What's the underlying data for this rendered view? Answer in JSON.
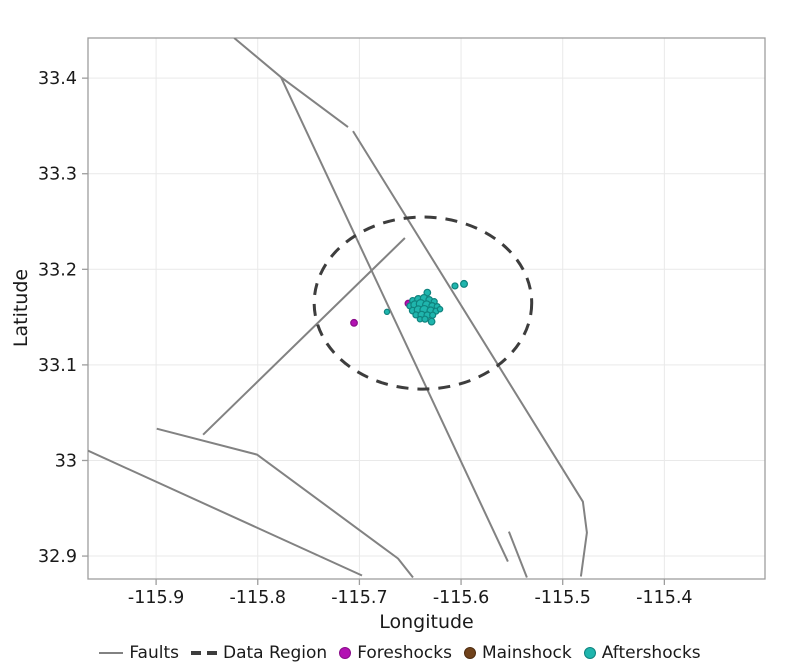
{
  "figure": {
    "background": "#ffffff",
    "text_color": "#1a1a1a"
  },
  "styles": {
    "grid_color": "#e9e9e9",
    "border_color": "#9d9d9d",
    "tick_color": "#9d9d9d",
    "fault_color": "#828282",
    "data_region_color": "#3d3d3d",
    "foreshock_fill": "#b312b3",
    "foreshock_stroke": "#8a0d8a",
    "mainshock_fill": "#70421b",
    "mainshock_stroke": "#4f2d11",
    "aftershock_fill": "#1fb5ad",
    "aftershock_stroke": "#0f837e"
  },
  "chart_data": {
    "type": "scatter",
    "title": "",
    "xlabel": "Longitude",
    "ylabel": "Latitude",
    "xlim": [
      -115.967,
      -115.301
    ],
    "ylim": [
      32.876,
      33.442
    ],
    "grid": true,
    "legend_position": "bottom",
    "x_ticks": [
      {
        "v": -115.9,
        "label": "-115.9"
      },
      {
        "v": -115.8,
        "label": "-115.8"
      },
      {
        "v": -115.7,
        "label": "-115.7"
      },
      {
        "v": -115.6,
        "label": "-115.6"
      },
      {
        "v": -115.5,
        "label": "-115.5"
      },
      {
        "v": -115.4,
        "label": "-115.4"
      }
    ],
    "y_ticks": [
      {
        "v": 33.4,
        "label": "33.4"
      },
      {
        "v": 33.3,
        "label": "33.3"
      },
      {
        "v": 33.2,
        "label": "33.2"
      },
      {
        "v": 33.1,
        "label": "33.1"
      },
      {
        "v": 33.0,
        "label": "33"
      },
      {
        "v": 32.9,
        "label": "32.9"
      }
    ],
    "series": [
      {
        "name": "Faults",
        "type": "line",
        "polylines": [
          [
            [
              -115.8232,
              33.442
            ],
            [
              -115.7771,
              33.401
            ],
            [
              -115.7112,
              33.3488
            ]
          ],
          [
            [
              -115.7063,
              33.3446
            ],
            [
              -115.4801,
              32.9569
            ],
            [
              -115.4762,
              32.9245
            ],
            [
              -115.4821,
              32.8786
            ]
          ],
          [
            [
              -115.7771,
              33.401
            ],
            [
              -115.5539,
              32.8942
            ]
          ],
          [
            [
              -115.8538,
              33.027
            ],
            [
              -115.6552,
              33.2328
            ]
          ],
          [
            [
              -115.8994,
              33.0332
            ],
            [
              -115.8007,
              33.0061
            ],
            [
              -115.662,
              32.8974
            ],
            [
              -115.6473,
              32.8776
            ]
          ],
          [
            [
              -115.967,
              33.0102
            ],
            [
              -115.6975,
              32.8797
            ]
          ],
          [
            [
              -115.5529,
              32.9256
            ],
            [
              -115.5352,
              32.8776
            ]
          ]
        ]
      },
      {
        "name": "Data Region",
        "type": "ellipse",
        "line_style": "dashed",
        "center_lon": -115.6375,
        "center_lat": 33.1647,
        "rx_deg": 0.107,
        "ry_deg": 0.09
      },
      {
        "name": "Foreshocks",
        "type": "scatter",
        "points": [
          {
            "lon": -115.7053,
            "lat": 33.144,
            "r": 3.3
          },
          {
            "lon": -115.6519,
            "lat": 33.1643,
            "r": 3.2
          }
        ]
      },
      {
        "name": "Mainshock",
        "type": "scatter",
        "points": [
          {
            "lon": -115.6395,
            "lat": 33.1607,
            "r": 5.0
          }
        ]
      },
      {
        "name": "Aftershocks",
        "type": "scatter",
        "points": [
          {
            "lon": -115.6332,
            "lat": 33.1756,
            "r": 3.3
          },
          {
            "lon": -115.6476,
            "lat": 33.1673,
            "r": 3.0
          },
          {
            "lon": -115.6421,
            "lat": 33.1687,
            "r": 3.6
          },
          {
            "lon": -115.6365,
            "lat": 33.1698,
            "r": 3.6
          },
          {
            "lon": -115.6313,
            "lat": 33.168,
            "r": 3.3
          },
          {
            "lon": -115.6264,
            "lat": 33.1662,
            "r": 3.0
          },
          {
            "lon": -115.6503,
            "lat": 33.1617,
            "r": 3.0
          },
          {
            "lon": -115.6454,
            "lat": 33.1628,
            "r": 4.0
          },
          {
            "lon": -115.6398,
            "lat": 33.1638,
            "r": 4.3
          },
          {
            "lon": -115.6339,
            "lat": 33.1628,
            "r": 4.0
          },
          {
            "lon": -115.6284,
            "lat": 33.1617,
            "r": 3.3
          },
          {
            "lon": -115.6235,
            "lat": 33.161,
            "r": 3.0
          },
          {
            "lon": -115.6476,
            "lat": 33.1568,
            "r": 3.3
          },
          {
            "lon": -115.6421,
            "lat": 33.1576,
            "r": 4.0
          },
          {
            "lon": -115.6362,
            "lat": 33.1576,
            "r": 4.3
          },
          {
            "lon": -115.6299,
            "lat": 33.1568,
            "r": 3.6
          },
          {
            "lon": -115.6247,
            "lat": 33.1562,
            "r": 3.0
          },
          {
            "lon": -115.6207,
            "lat": 33.1583,
            "r": 2.7
          },
          {
            "lon": -115.6444,
            "lat": 33.1523,
            "r": 3.0
          },
          {
            "lon": -115.6388,
            "lat": 33.1523,
            "r": 3.6
          },
          {
            "lon": -115.6332,
            "lat": 33.152,
            "r": 3.3
          },
          {
            "lon": -115.6279,
            "lat": 33.152,
            "r": 3.0
          },
          {
            "lon": -115.6404,
            "lat": 33.1478,
            "r": 2.7
          },
          {
            "lon": -115.6355,
            "lat": 33.1478,
            "r": 3.0
          },
          {
            "lon": -115.629,
            "lat": 33.1453,
            "r": 3.3
          },
          {
            "lon": -115.6729,
            "lat": 33.1555,
            "r": 2.6
          },
          {
            "lon": -115.606,
            "lat": 33.1826,
            "r": 3.0
          },
          {
            "lon": -115.5971,
            "lat": 33.1847,
            "r": 3.4
          }
        ]
      }
    ]
  },
  "legend": {
    "items": [
      {
        "label": "Faults",
        "marker": "line",
        "color": "#828282"
      },
      {
        "label": "Data Region",
        "marker": "dashes",
        "color": "#3d3d3d"
      },
      {
        "label": "Foreshocks",
        "marker": "dot",
        "color": "#b312b3",
        "border": "#8a0d8a"
      },
      {
        "label": "Mainshock",
        "marker": "dot",
        "color": "#70421b",
        "border": "#4f2d11"
      },
      {
        "label": "Aftershocks",
        "marker": "dot",
        "color": "#1fb5ad",
        "border": "#0f837e"
      }
    ]
  }
}
